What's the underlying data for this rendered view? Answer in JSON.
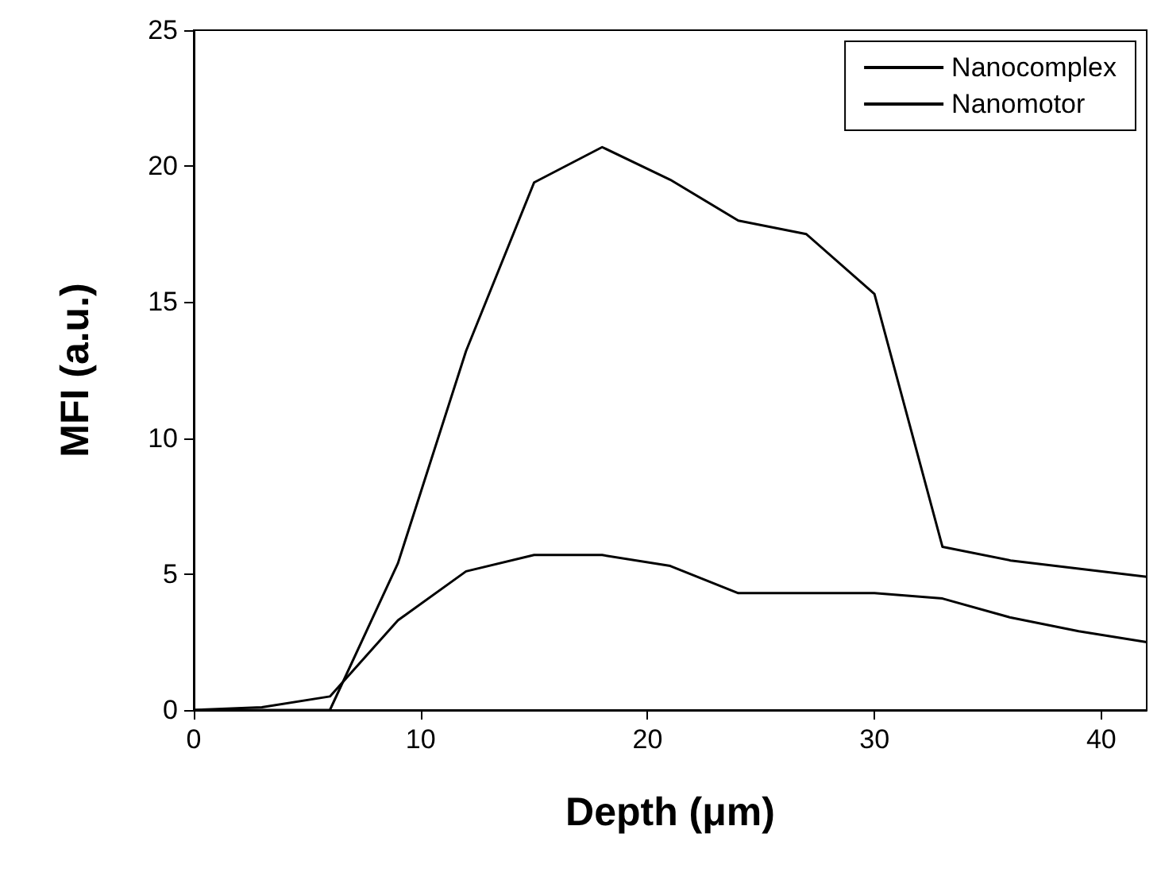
{
  "chart_data": {
    "type": "line",
    "xlabel": "Depth (μm)",
    "ylabel": "MFI (a.u.)",
    "x": [
      0,
      3,
      6,
      9,
      12,
      15,
      18,
      21,
      24,
      27,
      30,
      33,
      36,
      39,
      42
    ],
    "series": [
      {
        "name": "Nanocomplex",
        "color": "#000000",
        "values": [
          0,
          0.1,
          0.5,
          3.3,
          5.1,
          5.7,
          5.7,
          5.3,
          4.3,
          4.3,
          4.3,
          4.1,
          3.4,
          2.9,
          2.5
        ]
      },
      {
        "name": "Nanomotor",
        "color": "#000000",
        "values": [
          0,
          0,
          0,
          5.4,
          13.2,
          19.4,
          20.7,
          19.5,
          18.0,
          17.5,
          15.3,
          6.0,
          5.5,
          5.2,
          4.9
        ]
      }
    ],
    "xlim": [
      0,
      42
    ],
    "xticks": [
      0,
      10,
      20,
      30,
      40
    ],
    "ylim": [
      0,
      25
    ],
    "yticks": [
      0,
      5,
      10,
      15,
      20,
      25
    ],
    "grid": false,
    "legend": "top right",
    "marker": "none",
    "line_style": "solid"
  }
}
